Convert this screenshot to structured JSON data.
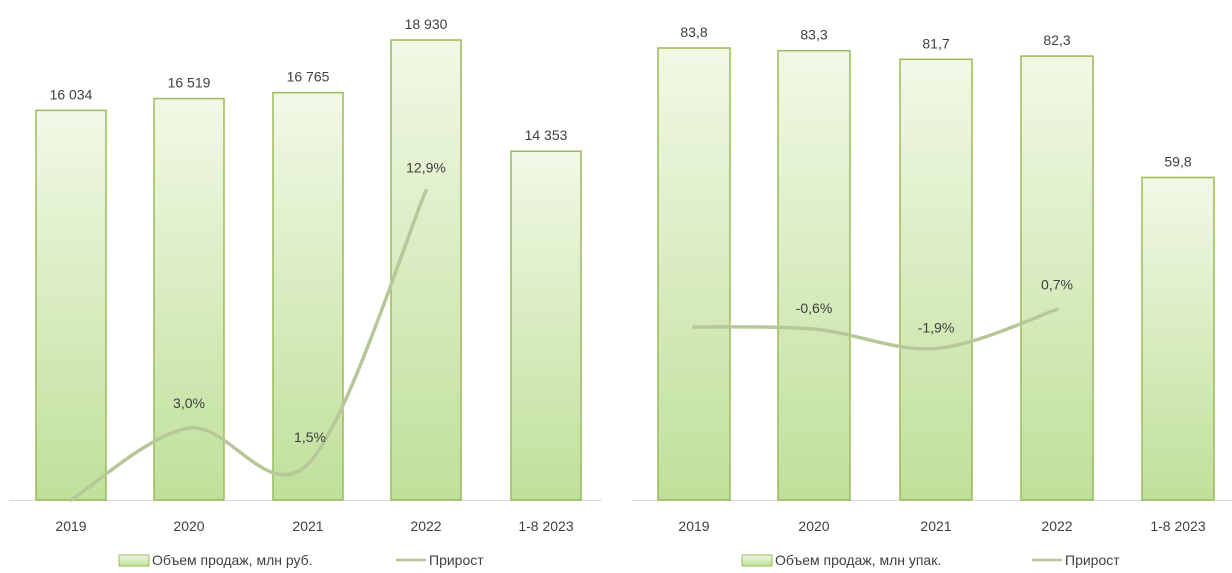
{
  "chart_data": [
    {
      "type": "bar",
      "title": "",
      "xlabel": "",
      "ylabel": "",
      "categories": [
        "2019",
        "2020",
        "2021",
        "2022",
        "1-8 2023"
      ],
      "series": [
        {
          "name": "Объем продаж, млн руб.",
          "type": "bar",
          "values": [
            16034,
            16519,
            16765,
            18930,
            14353
          ],
          "labels": [
            "16 034",
            "16 519",
            "16 765",
            "18 930",
            "14 353"
          ]
        },
        {
          "name": "Прирост",
          "type": "line",
          "values": [
            null,
            3.0,
            1.5,
            12.9,
            null
          ],
          "labels": [
            "",
            "3,0%",
            "1,5%",
            "12,9%",
            ""
          ]
        }
      ],
      "grid": false,
      "legend_position": "bottom",
      "colors": {
        "bar_fill_top": "#f2f8e6",
        "bar_fill_bottom": "#bfe09a",
        "bar_stroke": "#9bbb59",
        "line": "#b7c79a",
        "axis": "#d9d9d9",
        "text": "#404040"
      }
    },
    {
      "type": "bar",
      "title": "",
      "xlabel": "",
      "ylabel": "",
      "categories": [
        "2019",
        "2020",
        "2021",
        "2022",
        "1-8 2023"
      ],
      "series": [
        {
          "name": "Объем продаж, млн упак.",
          "type": "bar",
          "values": [
            83.8,
            83.3,
            81.7,
            82.3,
            59.8
          ],
          "labels": [
            "83,8",
            "83,3",
            "81,7",
            "82,3",
            "59,8"
          ]
        },
        {
          "name": "Прирост",
          "type": "line",
          "values": [
            null,
            -0.6,
            -1.9,
            0.7,
            null
          ],
          "labels": [
            "",
            "-0,6%",
            "-1,9%",
            "0,7%",
            ""
          ]
        }
      ],
      "grid": false,
      "legend_position": "bottom",
      "colors": {
        "bar_fill_top": "#f2f8e6",
        "bar_fill_bottom": "#bfe09a",
        "bar_stroke": "#9bbb59",
        "line": "#b7c79a",
        "axis": "#d9d9d9",
        "text": "#404040"
      }
    }
  ]
}
